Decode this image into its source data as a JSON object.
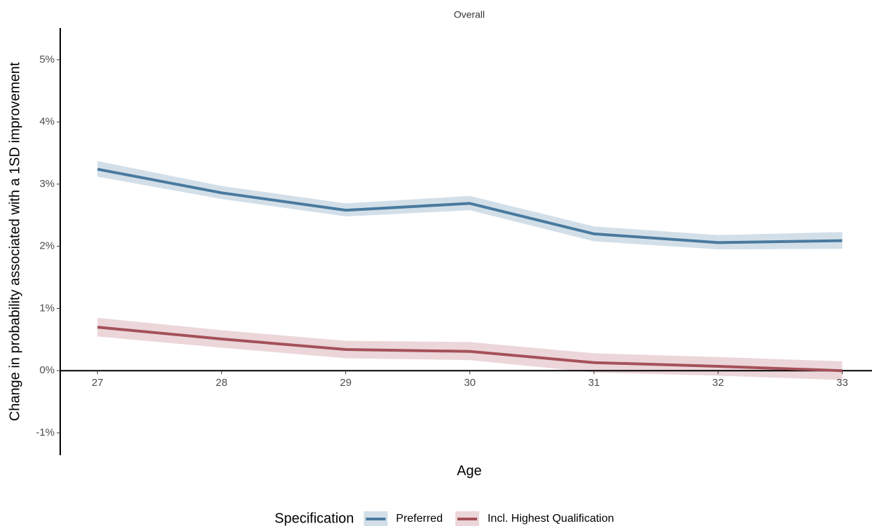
{
  "chart_data": {
    "type": "line",
    "title": "Overall",
    "x_label": "Age",
    "y_label": "Change in probability associated with a 1SD improvement",
    "legend_title": "Specification",
    "x": [
      27,
      28,
      29,
      30,
      31,
      32,
      33
    ],
    "series": [
      {
        "name": "Preferred",
        "color": "#497a9f",
        "band_color": "#d3dfe8",
        "values": [
          3.24,
          2.86,
          2.58,
          2.69,
          2.2,
          2.06,
          2.09
        ],
        "lower": [
          3.12,
          2.76,
          2.48,
          2.58,
          2.08,
          1.95,
          1.96
        ],
        "upper": [
          3.37,
          2.97,
          2.69,
          2.81,
          2.32,
          2.18,
          2.23
        ]
      },
      {
        "name": "Incl. Highest Qualification",
        "color": "#a5515a",
        "band_color": "#ecd6d9",
        "values": [
          0.7,
          0.51,
          0.34,
          0.31,
          0.13,
          0.07,
          0.0
        ],
        "lower": [
          0.55,
          0.37,
          0.2,
          0.17,
          -0.03,
          -0.08,
          -0.15
        ],
        "upper": [
          0.85,
          0.65,
          0.48,
          0.46,
          0.28,
          0.22,
          0.15
        ]
      }
    ],
    "xlim": [
      26.7,
      33.24
    ],
    "xticks": [
      27,
      28,
      29,
      30,
      31,
      32,
      33
    ],
    "ylim": [
      -1.36,
      5.51
    ],
    "yticks": [
      {
        "value": -1,
        "label": "-1%"
      },
      {
        "value": 0,
        "label": "0%"
      },
      {
        "value": 1,
        "label": "1%"
      },
      {
        "value": 2,
        "label": "2%"
      },
      {
        "value": 3,
        "label": "3%"
      },
      {
        "value": 4,
        "label": "4%"
      },
      {
        "value": 5,
        "label": "5%"
      }
    ],
    "legend": "bottom"
  }
}
